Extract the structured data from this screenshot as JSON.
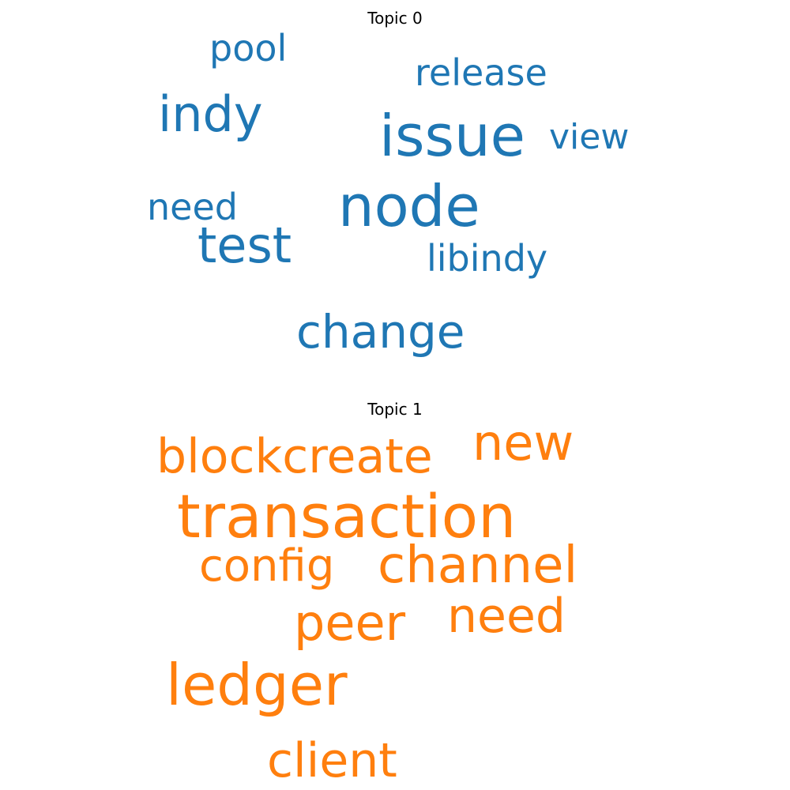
{
  "topics": [
    {
      "title": "Topic 0",
      "color": "#1f77b4",
      "words": [
        "indy",
        "issue",
        "node",
        "test",
        "pool",
        "release",
        "view",
        "need",
        "libindy",
        "change"
      ]
    },
    {
      "title": "Topic 1",
      "color": "#ff7f0e",
      "words": [
        "blockcreate",
        "new",
        "transaction",
        "config",
        "channel",
        "peer",
        "need",
        "ledger",
        "client"
      ]
    }
  ]
}
